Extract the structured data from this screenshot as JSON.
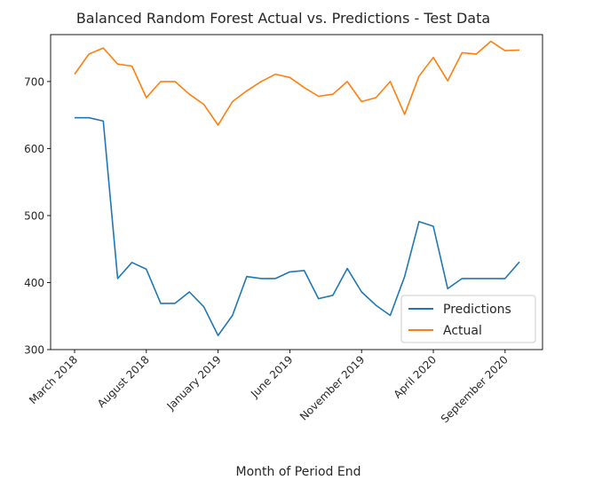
{
  "chart_data": {
    "type": "line",
    "title": "Balanced Random Forest Actual vs. Predictions - Test Data",
    "xlabel": "Month of Period End",
    "ylabel": "",
    "ylim": [
      300,
      770
    ],
    "yticks": [
      300,
      400,
      500,
      600,
      700
    ],
    "x": [
      "2018-03",
      "2018-04",
      "2018-05",
      "2018-06",
      "2018-07",
      "2018-08",
      "2018-09",
      "2018-10",
      "2018-11",
      "2018-12",
      "2019-01",
      "2019-02",
      "2019-03",
      "2019-04",
      "2019-05",
      "2019-06",
      "2019-07",
      "2019-08",
      "2019-09",
      "2019-10",
      "2019-11",
      "2019-12",
      "2020-01",
      "2020-02",
      "2020-03",
      "2020-04",
      "2020-05",
      "2020-06",
      "2020-07",
      "2020-08",
      "2020-09",
      "2020-10"
    ],
    "xticks": [
      {
        "month": "2018-03",
        "label": "March 2018"
      },
      {
        "month": "2018-08",
        "label": "August 2018"
      },
      {
        "month": "2019-01",
        "label": "January 2019"
      },
      {
        "month": "2019-06",
        "label": "June 2019"
      },
      {
        "month": "2019-11",
        "label": "November 2019"
      },
      {
        "month": "2020-04",
        "label": "April 2020"
      },
      {
        "month": "2020-09",
        "label": "September 2020"
      }
    ],
    "series": [
      {
        "name": "Predictions",
        "color": "#1f77b4",
        "values": [
          646,
          646,
          641,
          406,
          430,
          420,
          369,
          369,
          386,
          364,
          321,
          351,
          409,
          406,
          406,
          416,
          418,
          376,
          381,
          421,
          386,
          366,
          351,
          409,
          491,
          484,
          391,
          406,
          406,
          406,
          406,
          431
        ]
      },
      {
        "name": "Actual",
        "color": "#ff7f0e",
        "values": [
          711,
          741,
          750,
          726,
          723,
          676,
          700,
          700,
          681,
          666,
          635,
          670,
          686,
          700,
          711,
          706,
          691,
          678,
          681,
          700,
          670,
          676,
          700,
          651,
          708,
          736,
          701,
          743,
          741,
          760,
          746,
          747
        ]
      }
    ],
    "legend_position": "lower-right",
    "grid": false
  }
}
